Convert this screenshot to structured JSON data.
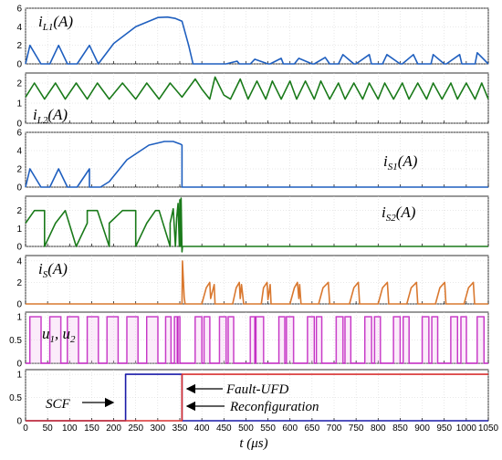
{
  "chart_data": {
    "type": "line",
    "x_axis": {
      "label": "t (μs)",
      "range": [
        0,
        1050
      ],
      "ticks": [
        0,
        50,
        100,
        150,
        200,
        250,
        300,
        350,
        400,
        450,
        500,
        550,
        600,
        650,
        700,
        750,
        800,
        850,
        900,
        950,
        1000,
        1050
      ],
      "tick_labels": [
        "0",
        "50",
        "100",
        "150",
        "200",
        "250",
        "300",
        "350",
        "400",
        "450",
        "500",
        "550",
        "600",
        "650",
        "700",
        "750",
        "800",
        "850",
        "900",
        "950",
        "1000",
        "1050"
      ]
    },
    "panels": [
      {
        "label_main": "i",
        "label_sub": "L1",
        "label_tail": "(A)",
        "color": "#1f5fbf",
        "ylim": [
          0,
          6
        ],
        "yticks": [
          0,
          2,
          4,
          6
        ],
        "series": [
          {
            "x": [
              0,
              10,
              35,
              55,
              75,
              95,
              117,
              145,
              165,
              200,
              250,
              300,
              322,
              340,
              355,
              370,
              380,
              415,
              455,
              480,
              485,
              510,
              520,
              550,
              555,
              580,
              585,
              610,
              620,
              650,
              655,
              680,
              690,
              710,
              720,
              745,
              750,
              780,
              785,
              810,
              820,
              850,
              855,
              880,
              890,
              920,
              925,
              950,
              955,
              985,
              990,
              1020,
              1025,
              1050
            ],
            "y": [
              0,
              2.0,
              0,
              0,
              2.0,
              0,
              0,
              2.0,
              0,
              2.2,
              4.0,
              5.0,
              5.05,
              4.9,
              4.6,
              2.0,
              0,
              0,
              0,
              0.3,
              0,
              0,
              0.5,
              0,
              0,
              0.6,
              0,
              0,
              0.6,
              0,
              0,
              0.7,
              0,
              0,
              1.0,
              0,
              0,
              1.0,
              0,
              0,
              1.0,
              0,
              0,
              1.0,
              0,
              0,
              1.0,
              0,
              0,
              1.0,
              0,
              0,
              1.2,
              0
            ]
          }
        ]
      },
      {
        "label_main": "i",
        "label_sub": "L2",
        "label_tail": "(A)",
        "color": "#1a7a1a",
        "ylim": [
          0,
          2.5
        ],
        "yticks": [
          0,
          1,
          2
        ],
        "series": [
          {
            "x": [
              0,
              20,
              43,
              68,
              90,
              115,
              140,
              163,
              190,
              220,
              250,
              275,
              303,
              328,
              355,
              385,
              400,
              418,
              430,
              450,
              465,
              487,
              505,
              525,
              545,
              560,
              580,
              600,
              615,
              635,
              655,
              670,
              690,
              710,
              725,
              745,
              765,
              780,
              800,
              815,
              835,
              855,
              870,
              890,
              910,
              925,
              945,
              965,
              980,
              1000,
              1020,
              1035,
              1050
            ],
            "y": [
              1.3,
              2.0,
              1.2,
              2.0,
              1.2,
              2.0,
              1.2,
              2.0,
              1.2,
              2.0,
              1.2,
              2.0,
              1.2,
              2.0,
              1.3,
              2.2,
              1.7,
              1.2,
              2.3,
              1.4,
              1.2,
              2.2,
              1.2,
              2.1,
              1.2,
              2.1,
              1.2,
              2.1,
              1.2,
              2.1,
              1.2,
              2.1,
              1.2,
              2.0,
              1.2,
              2.0,
              1.2,
              2.0,
              1.2,
              2.0,
              1.2,
              2.0,
              1.2,
              2.0,
              1.2,
              2.0,
              1.2,
              2.0,
              1.2,
              2.0,
              1.2,
              2.0,
              1.2
            ]
          }
        ]
      },
      {
        "label_main": "i",
        "label_sub": "S1",
        "label_tail": "(A)",
        "color": "#1f5fbf",
        "ylim": [
          0,
          6
        ],
        "yticks": [
          0,
          2,
          4,
          6
        ],
        "series": [
          {
            "x": [
              0,
              10,
              35,
              35,
              55,
              75,
              95,
              95,
              117,
              145,
              145,
              170,
              190,
              230,
              280,
              315,
              335,
              352,
              355,
              355,
              1050
            ],
            "y": [
              0,
              2.0,
              0,
              0,
              0,
              2.0,
              0,
              0,
              0,
              2.0,
              0,
              0,
              0.6,
              3.0,
              4.6,
              5.0,
              5.0,
              4.7,
              4.6,
              0,
              0
            ]
          }
        ]
      },
      {
        "label_main": "i",
        "label_sub": "S2",
        "label_tail": "(A)",
        "color": "#1a7a1a",
        "ylim": [
          0,
          2.8
        ],
        "yticks": [
          0,
          1,
          2
        ],
        "series": [
          {
            "x": [
              0,
              0,
              20,
              43,
              43,
              68,
              90,
              90,
              115,
              140,
              140,
              163,
              190,
              190,
              220,
              250,
              250,
              275,
              295,
              303,
              328,
              328,
              335,
              340,
              343,
              346,
              349,
              350,
              352,
              353,
              355,
              356,
              360,
              1050
            ],
            "y": [
              1.3,
              1.3,
              2.0,
              2.0,
              0,
              1.3,
              2.0,
              2.0,
              0,
              1.3,
              2.0,
              2.0,
              0,
              1.3,
              2.0,
              2.0,
              0,
              1.3,
              2.0,
              2.0,
              0,
              1.3,
              2.1,
              0,
              1.6,
              2.4,
              0,
              2.6,
              0,
              2.7,
              -0.3,
              0,
              0,
              0
            ]
          }
        ]
      },
      {
        "label_main": "i",
        "label_sub": "S",
        "label_tail": "(A)",
        "color": "#d9782f",
        "ylim": [
          0,
          4.5
        ],
        "yticks": [
          0,
          2,
          4
        ],
        "series": [
          {
            "x": [
              0,
              355,
              356,
              360,
              362,
              400,
              410,
              418,
              420,
              428,
              430,
              470,
              478,
              485,
              487,
              490,
              495,
              535,
              540,
              548,
              550,
              555,
              557,
              560,
              600,
              610,
              617,
              620,
              622,
              625,
              665,
              675,
              687,
              690,
              735,
              745,
              755,
              758,
              800,
              810,
              821,
              824,
              865,
              875,
              887,
              890,
              930,
              940,
              951,
              954,
              995,
              1005,
              1016,
              1019,
              1050
            ],
            "y": [
              0,
              0,
              4.0,
              0.6,
              0,
              0,
              1.5,
              2.0,
              0.5,
              1.8,
              0,
              0,
              1.5,
              2.0,
              0.5,
              1.8,
              0,
              0,
              1.5,
              2.0,
              0.4,
              1.8,
              0,
              0,
              0,
              1.5,
              2.0,
              0.5,
              1.8,
              0,
              0,
              1.5,
              2.0,
              0,
              0,
              1.5,
              2.0,
              0,
              0,
              1.5,
              2.0,
              0,
              0,
              1.5,
              2.0,
              0,
              0,
              1.5,
              2.0,
              0,
              0,
              1.5,
              2.0,
              0,
              0
            ]
          }
        ]
      },
      {
        "label_main": "u",
        "label_sub": "1",
        "label_mid": ", u",
        "label_sub2": "2",
        "label_tail": "",
        "color": "#c020c0",
        "ylim": [
          0,
          1.1
        ],
        "yticks": [
          0,
          0.5,
          1
        ],
        "pulses": [
          [
            10,
            35
          ],
          [
            55,
            80
          ],
          [
            95,
            120
          ],
          [
            140,
            165
          ],
          [
            185,
            210
          ],
          [
            230,
            255
          ],
          [
            275,
            300
          ],
          [
            318,
            330
          ],
          [
            338,
            344
          ],
          [
            346,
            350
          ],
          [
            385,
            400
          ],
          [
            405,
            418
          ],
          [
            440,
            455
          ],
          [
            460,
            472
          ],
          [
            510,
            520
          ],
          [
            523,
            540
          ],
          [
            575,
            588
          ],
          [
            592,
            608
          ],
          [
            640,
            655
          ],
          [
            660,
            672
          ],
          [
            705,
            720
          ],
          [
            725,
            738
          ],
          [
            770,
            785
          ],
          [
            792,
            805
          ],
          [
            835,
            850
          ],
          [
            857,
            870
          ],
          [
            900,
            915
          ],
          [
            922,
            935
          ],
          [
            965,
            980
          ],
          [
            988,
            1000
          ],
          [
            1025,
            1040
          ]
        ]
      },
      {
        "label_main": "",
        "label_sub": "",
        "label_tail": "",
        "color": "#1a1aa8",
        "ylim": [
          0,
          1.1
        ],
        "yticks": [
          0,
          0.5,
          1
        ],
        "series": [
          {
            "name": "SCF",
            "color": "#1a1aa8",
            "x": [
              0,
              227,
              227,
              355,
              355,
              1050
            ],
            "y": [
              0,
              0,
              1,
              1,
              0,
              0
            ]
          },
          {
            "name": "Fault-UFD / Reconfiguration",
            "color": "#d83030",
            "x": [
              0,
              355,
              355,
              1050
            ],
            "y": [
              0,
              0,
              1,
              1
            ]
          }
        ]
      }
    ],
    "annotations": {
      "scf": "SCF",
      "fault_ufd": "Fault-UFD",
      "reconfiguration": "Reconfiguration"
    }
  }
}
